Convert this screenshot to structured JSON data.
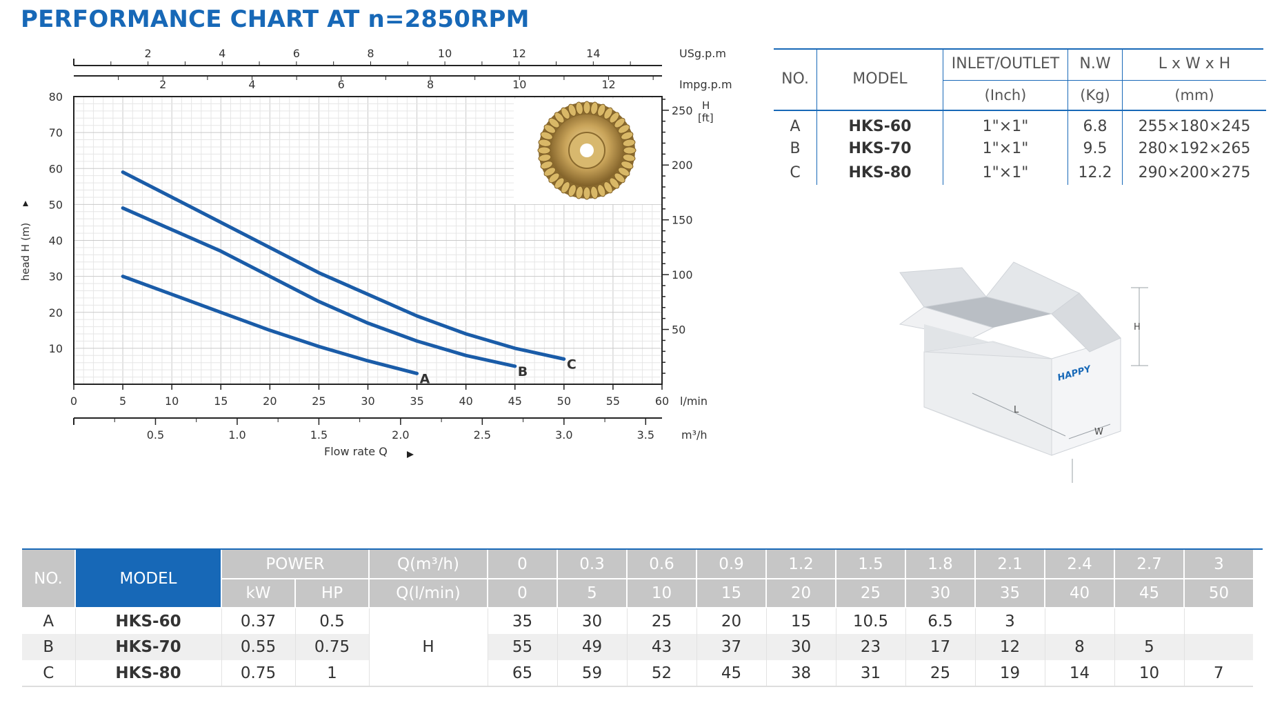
{
  "title": "PERFORMANCE CHART AT n=2850RPM",
  "chart_data": {
    "type": "line",
    "xlabel": "Flow rate Q",
    "ylabel": "head H (m)",
    "x_unit": "l/min",
    "x": [
      0,
      5,
      10,
      15,
      20,
      25,
      30,
      35,
      40,
      45,
      50
    ],
    "series": [
      {
        "name": "A",
        "x": [
          5,
          10,
          15,
          20,
          25,
          30,
          35
        ],
        "y": [
          30,
          25,
          20,
          15,
          10.5,
          6.5,
          3
        ]
      },
      {
        "name": "B",
        "x": [
          5,
          10,
          15,
          20,
          25,
          30,
          35,
          40,
          45
        ],
        "y": [
          49,
          43,
          37,
          30,
          23,
          17,
          12,
          8,
          5
        ]
      },
      {
        "name": "C",
        "x": [
          5,
          10,
          15,
          20,
          25,
          30,
          35,
          40,
          45,
          50
        ],
        "y": [
          59,
          52,
          45,
          38,
          31,
          25,
          19,
          14,
          10,
          7
        ]
      }
    ],
    "xlim": [
      0,
      60
    ],
    "ylim": [
      0,
      80
    ],
    "y_ticks": [
      10,
      20,
      30,
      40,
      50,
      60,
      70,
      80
    ],
    "x_ticks": [
      0,
      5,
      10,
      15,
      20,
      25,
      30,
      35,
      40,
      45,
      50,
      55,
      60
    ],
    "x_unit_label": "l/min",
    "m3h_ticks": [
      "0.5",
      "1.0",
      "1.5",
      "2.0",
      "2.5",
      "3.0",
      "3.5"
    ],
    "m3h_values": [
      0.5,
      1.0,
      1.5,
      2.0,
      2.5,
      3.0,
      3.5
    ],
    "m3h_label": "m³/h",
    "usgpm_ticks": [
      "2",
      "4",
      "6",
      "8",
      "10",
      "12",
      "14"
    ],
    "usgpm_values": [
      2,
      4,
      6,
      8,
      10,
      12,
      14
    ],
    "usgpm_label": "USg.p.m",
    "impgpm_ticks": [
      "2",
      "4",
      "6",
      "8",
      "10",
      "12"
    ],
    "impgpm_values": [
      2,
      4,
      6,
      8,
      10,
      12
    ],
    "impgpm_label": "Impg.p.m",
    "ft_ticks": [
      "50",
      "100",
      "150",
      "200",
      "250"
    ],
    "ft_values": [
      50,
      100,
      150,
      200,
      250
    ],
    "ft_label_h": "H",
    "ft_label_unit": "[ft]",
    "flow_label": "Flow rate Q",
    "grid": true,
    "line_color": "#1a5ca8"
  },
  "spec_table": {
    "headers": [
      "NO.",
      "MODEL",
      "INLET/OUTLET",
      "N.W",
      "L x W x H"
    ],
    "units": [
      "(Inch)",
      "(Kg)",
      "(mm)"
    ],
    "rows": [
      {
        "no": "A",
        "model": "HKS-60",
        "io": "1\"×1\"",
        "nw": "6.8",
        "dim": "255×180×245"
      },
      {
        "no": "B",
        "model": "HKS-70",
        "io": "1\"×1\"",
        "nw": "9.5",
        "dim": "280×192×265"
      },
      {
        "no": "C",
        "model": "HKS-80",
        "io": "1\"×1\"",
        "nw": "12.2",
        "dim": "290×200×275"
      }
    ]
  },
  "box": {
    "brand": "HAPPY",
    "label_l": "L",
    "label_w": "W",
    "label_h": "H"
  },
  "perf_table": {
    "no_label": "NO.",
    "model_label": "MODEL",
    "power_label": "POWER",
    "kw_label": "kW",
    "hp_label": "HP",
    "q_m3h_label": "Q(m³/h)",
    "q_lmin_label": "Q(l/min)",
    "q_m3h": [
      "0",
      "0.3",
      "0.6",
      "0.9",
      "1.2",
      "1.5",
      "1.8",
      "2.1",
      "2.4",
      "2.7",
      "3"
    ],
    "q_lmin": [
      "0",
      "5",
      "10",
      "15",
      "20",
      "25",
      "30",
      "35",
      "40",
      "45",
      "50"
    ],
    "h_label": "H",
    "rows": [
      {
        "no": "A",
        "model": "HKS-60",
        "kw": "0.37",
        "hp": "0.5",
        "h": [
          "35",
          "30",
          "25",
          "20",
          "15",
          "10.5",
          "6.5",
          "3",
          "",
          "",
          ""
        ]
      },
      {
        "no": "B",
        "model": "HKS-70",
        "kw": "0.55",
        "hp": "0.75",
        "h": [
          "55",
          "49",
          "43",
          "37",
          "30",
          "23",
          "17",
          "12",
          "8",
          "5",
          ""
        ]
      },
      {
        "no": "C",
        "model": "HKS-80",
        "kw": "0.75",
        "hp": "1",
        "h": [
          "65",
          "59",
          "52",
          "45",
          "38",
          "31",
          "25",
          "19",
          "14",
          "10",
          "7"
        ]
      }
    ]
  }
}
